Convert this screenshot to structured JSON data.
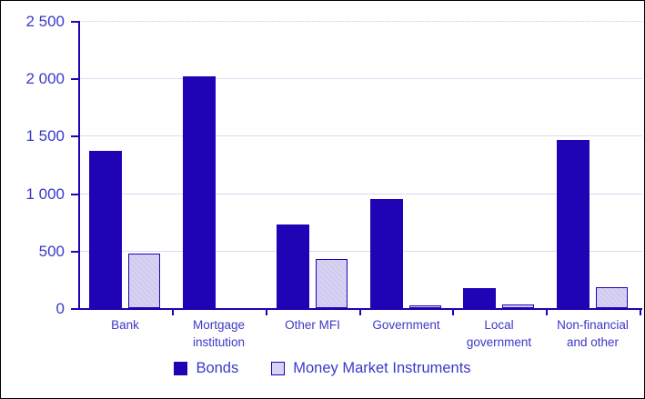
{
  "chart_data": {
    "type": "bar",
    "title": "",
    "xlabel": "",
    "ylabel": "",
    "categories": [
      "Bank",
      "Mortgage institution",
      "Other MFI",
      "Government",
      "Local government",
      "Non-financial and other"
    ],
    "series": [
      {
        "name": "Bonds",
        "values": [
          1370,
          2020,
          725,
          950,
          175,
          1460
        ]
      },
      {
        "name": "Money Market Instruments",
        "values": [
          475,
          0,
          430,
          20,
          35,
          185
        ]
      }
    ],
    "ylim": [
      0,
      2500
    ],
    "ytick_step": 500,
    "ytick_labels": [
      "0",
      "500",
      "1 000",
      "1 500",
      "2 000",
      "2 500"
    ],
    "grid": true,
    "legend_position": "bottom"
  },
  "colors": {
    "bonds_fill": "#1e04b4",
    "mmi_fill": "#d5d1f1",
    "mmi_border": "#1e04b4",
    "axis": "#1e04b4",
    "label_text": "#3c38c8",
    "gridline": "#dcdaf3",
    "frame_border": "#000000",
    "background": "#ffffff"
  }
}
